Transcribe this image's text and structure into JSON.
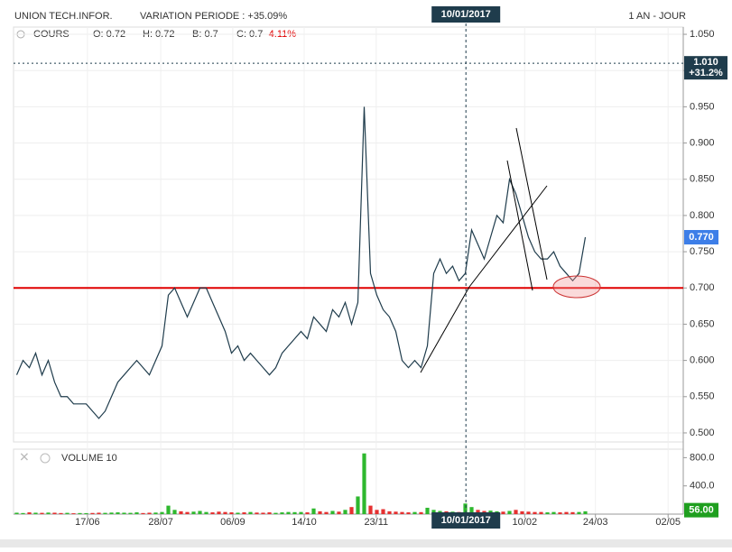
{
  "chart_data": [
    {
      "type": "line",
      "title": "UNION TECH.INFOR.",
      "subtitle": "VARIATION PERIODE : +35.09%",
      "period": "1 AN - JOUR",
      "legend": {
        "name": "COURS",
        "open": "O: 0.72",
        "high": "H: 0.72",
        "low": "B: 0.7",
        "close": "C: 0.7",
        "change": "-4.11%"
      },
      "color": "#1f3c4c",
      "values": [
        0.58,
        0.6,
        0.59,
        0.61,
        0.58,
        0.6,
        0.57,
        0.55,
        0.55,
        0.54,
        0.54,
        0.54,
        0.53,
        0.52,
        0.53,
        0.55,
        0.57,
        0.58,
        0.59,
        0.6,
        0.59,
        0.58,
        0.6,
        0.62,
        0.69,
        0.7,
        0.68,
        0.66,
        0.68,
        0.7,
        0.7,
        0.68,
        0.66,
        0.64,
        0.61,
        0.62,
        0.6,
        0.61,
        0.6,
        0.59,
        0.58,
        0.59,
        0.61,
        0.62,
        0.63,
        0.64,
        0.63,
        0.66,
        0.65,
        0.64,
        0.67,
        0.66,
        0.68,
        0.65,
        0.68,
        0.95,
        0.72,
        0.69,
        0.67,
        0.66,
        0.64,
        0.6,
        0.59,
        0.6,
        0.59,
        0.62,
        0.72,
        0.74,
        0.72,
        0.73,
        0.71,
        0.72,
        0.78,
        0.76,
        0.74,
        0.77,
        0.8,
        0.79,
        0.85,
        0.83,
        0.8,
        0.77,
        0.75,
        0.74,
        0.74,
        0.75,
        0.73,
        0.72,
        0.71,
        0.72,
        0.77
      ],
      "xlim": [
        0,
        106
      ],
      "xticks": [
        {
          "value": 11.7,
          "label": "17/06"
        },
        {
          "value": 23.3,
          "label": "28/07"
        },
        {
          "value": 34.7,
          "label": "06/09"
        },
        {
          "value": 46,
          "label": "14/10"
        },
        {
          "value": 57.4,
          "label": "23/11"
        },
        {
          "value": 80.9,
          "label": "10/02"
        },
        {
          "value": 92.1,
          "label": "24/03"
        },
        {
          "value": 103.6,
          "label": "02/05"
        }
      ],
      "crosshair": {
        "value": 71.6,
        "label": "10/01/2017"
      },
      "ylim": [
        0.4875,
        1.06
      ],
      "yticks": [
        {
          "value": 0.5,
          "label": "0.500"
        },
        {
          "value": 0.55,
          "label": "0.550"
        },
        {
          "value": 0.6,
          "label": "0.600"
        },
        {
          "value": 0.65,
          "label": "0.650"
        },
        {
          "value": 0.7,
          "label": "0.700"
        },
        {
          "value": 0.75,
          "label": "0.750"
        },
        {
          "value": 0.8,
          "label": "0.800"
        },
        {
          "value": 0.85,
          "label": "0.850"
        },
        {
          "value": 0.9,
          "label": "0.900"
        },
        {
          "value": 0.95,
          "label": "0.950"
        },
        {
          "value": 1.0,
          "label": "1.000"
        },
        {
          "value": 1.05,
          "label": "1.050"
        }
      ],
      "grid": true,
      "reference_line": {
        "value": 0.7,
        "color": "#e00000"
      },
      "markers": [
        {
          "value": 1.01,
          "label": "1.010",
          "note": "+31.2%",
          "color": "#1f3c4c"
        },
        {
          "value": 0.77,
          "label": "0.770",
          "color": "#3d7ee8"
        }
      ]
    },
    {
      "type": "bar",
      "title": "VOLUME 10",
      "up_color": "#2eb82e",
      "down_color": "#e53030",
      "values": [
        20,
        15,
        25,
        20,
        18,
        22,
        20,
        15,
        18,
        12,
        15,
        14,
        16,
        20,
        18,
        22,
        25,
        20,
        18,
        25,
        15,
        20,
        22,
        30,
        120,
        60,
        40,
        30,
        35,
        45,
        30,
        25,
        35,
        30,
        25,
        20,
        25,
        30,
        22,
        20,
        25,
        18,
        25,
        30,
        28,
        30,
        25,
        80,
        40,
        30,
        45,
        35,
        60,
        100,
        250,
        860,
        120,
        60,
        70,
        40,
        35,
        30,
        25,
        30,
        28,
        90,
        60,
        45,
        40,
        35,
        30,
        150,
        100,
        60,
        45,
        50,
        40,
        35,
        45,
        60,
        40,
        35,
        30,
        30,
        25,
        30,
        25,
        30,
        28,
        30,
        40
      ],
      "ylim": [
        0,
        920
      ],
      "yticks": [
        {
          "value": 400,
          "label": "400.0"
        },
        {
          "value": 800,
          "label": "800.0"
        }
      ],
      "markers": [
        {
          "value": 56,
          "label": "56.00",
          "color": "#1f9f1f"
        }
      ]
    }
  ]
}
